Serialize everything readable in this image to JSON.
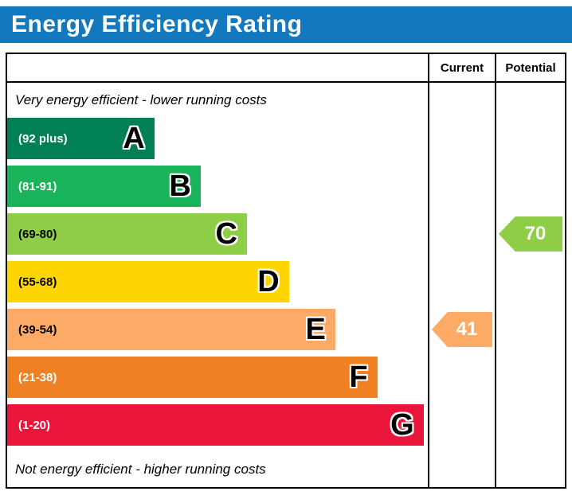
{
  "header": {
    "title": "Energy Efficiency Rating",
    "bg_color": "#1279be",
    "text_color": "#ffffff"
  },
  "columns": {
    "current": "Current",
    "potential": "Potential"
  },
  "captions": {
    "top": "Very energy efficient - lower running costs",
    "bottom": "Not energy efficient - higher running costs"
  },
  "bands": [
    {
      "letter": "A",
      "range": "(92 plus)",
      "color": "#008054",
      "width_pct": 35,
      "range_text_color": "#ffffff"
    },
    {
      "letter": "B",
      "range": "(81-91)",
      "color": "#19b459",
      "width_pct": 46,
      "range_text_color": "#ffffff"
    },
    {
      "letter": "C",
      "range": "(69-80)",
      "color": "#8dce46",
      "width_pct": 57,
      "range_text_color": "#000000"
    },
    {
      "letter": "D",
      "range": "(55-68)",
      "color": "#ffd500",
      "width_pct": 67,
      "range_text_color": "#000000"
    },
    {
      "letter": "E",
      "range": "(39-54)",
      "color": "#fcaa65",
      "width_pct": 78,
      "range_text_color": "#000000"
    },
    {
      "letter": "F",
      "range": "(21-38)",
      "color": "#ef8023",
      "width_pct": 88,
      "range_text_color": "#ffffff"
    },
    {
      "letter": "G",
      "range": "(1-20)",
      "color": "#e9153b",
      "width_pct": 99,
      "range_text_color": "#ffffff"
    }
  ],
  "ratings": {
    "current": {
      "value": "41",
      "band": "E",
      "color": "#fcaa65",
      "row_index": 4
    },
    "potential": {
      "value": "70",
      "band": "C",
      "color": "#8dce46",
      "row_index": 2
    }
  },
  "chart_data": {
    "type": "bar",
    "title": "Energy Efficiency Rating",
    "categories": [
      "A",
      "B",
      "C",
      "D",
      "E",
      "F",
      "G"
    ],
    "ranges": [
      "92 plus",
      "81-91",
      "69-80",
      "55-68",
      "39-54",
      "21-38",
      "1-20"
    ],
    "bar_lengths_relative_pct": [
      35,
      46,
      57,
      67,
      78,
      88,
      99
    ],
    "colors": [
      "#008054",
      "#19b459",
      "#8dce46",
      "#ffd500",
      "#fcaa65",
      "#ef8023",
      "#e9153b"
    ],
    "columns": [
      "Current",
      "Potential"
    ],
    "current_value": 41,
    "current_band": "E",
    "potential_value": 70,
    "potential_band": "C",
    "annotations": [
      "Very energy efficient - lower running costs",
      "Not energy efficient - higher running costs"
    ],
    "legend_position": "none",
    "grid": false
  }
}
